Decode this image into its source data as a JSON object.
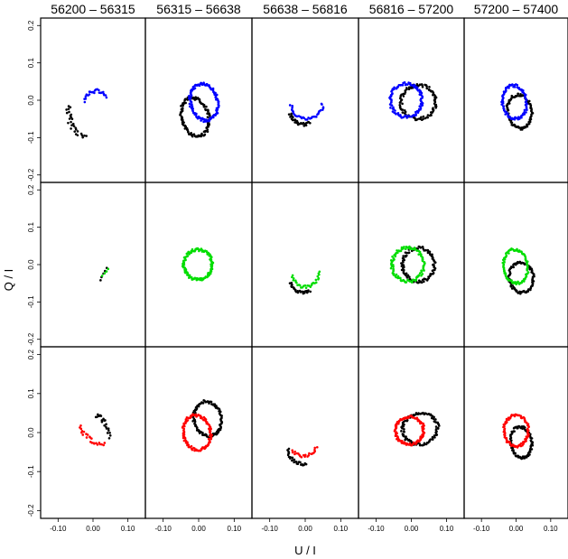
{
  "chart_data": {
    "type": "scatter",
    "layout": "grid 3 rows x 5 columns",
    "column_titles": [
      "56200 – 56315",
      "56315 – 56638",
      "56638 – 56816",
      "56816 – 57200",
      "57200 – 57400"
    ],
    "xlabel": "U / I",
    "ylabel": "Q / I",
    "xlim": [
      -0.15,
      0.15
    ],
    "ylim": [
      -0.22,
      0.22
    ],
    "x_ticks": [
      "-0.10",
      "0.00",
      "0.10"
    ],
    "x_tick_values": [
      -0.1,
      0.0,
      0.1
    ],
    "y_ticks": [
      "-0.2",
      "-0.1",
      "0.0",
      "0.1",
      "0.2"
    ],
    "y_tick_values": [
      -0.2,
      -0.1,
      0.0,
      0.1,
      0.2
    ],
    "grid": false,
    "row_colors": [
      "#0000ff",
      "#00dd00",
      "#ff0000"
    ],
    "reference_color": "#000000",
    "panels": [
      [
        {
          "black": {
            "shape": "arc",
            "cx": 0.02,
            "cy": -0.03,
            "rx": 0.09,
            "ry": 0.08,
            "t0": 170,
            "t1": 245,
            "n": 28
          },
          "colored": {
            "shape": "arc",
            "cx": 0.01,
            "cy": -0.03,
            "rx": 0.04,
            "ry": 0.055,
            "t0": 45,
            "t1": 155,
            "n": 24
          }
        },
        {
          "black": {
            "shape": "ellipse",
            "cx": -0.01,
            "cy": -0.045,
            "rx": 0.038,
            "ry": 0.052,
            "tilt": 0.3,
            "n": 120
          },
          "colored": {
            "shape": "ellipse",
            "cx": 0.015,
            "cy": -0.005,
            "rx": 0.038,
            "ry": 0.05,
            "tilt": 0.3,
            "n": 120
          }
        },
        {
          "black": {
            "shape": "arc",
            "cx": -0.005,
            "cy": -0.02,
            "rx": 0.04,
            "ry": 0.045,
            "t0": 200,
            "t1": 300,
            "n": 30
          },
          "colored": {
            "shape": "arc",
            "cx": 0.005,
            "cy": -0.005,
            "rx": 0.045,
            "ry": 0.045,
            "t0": 190,
            "t1": 360,
            "n": 34
          }
        },
        {
          "black": {
            "shape": "ellipse",
            "cx": 0.02,
            "cy": -0.005,
            "rx": 0.05,
            "ry": 0.045,
            "tilt": 0.1,
            "n": 100
          },
          "colored": {
            "shape": "ellipse",
            "cx": -0.015,
            "cy": 0.0,
            "rx": 0.045,
            "ry": 0.045,
            "tilt": 0.1,
            "n": 100
          }
        },
        {
          "black": {
            "shape": "ellipse",
            "cx": 0.01,
            "cy": -0.03,
            "rx": 0.035,
            "ry": 0.045,
            "tilt": 0.2,
            "n": 90
          },
          "colored": {
            "shape": "ellipse",
            "cx": -0.005,
            "cy": -0.005,
            "rx": 0.035,
            "ry": 0.045,
            "tilt": 0.2,
            "n": 90
          }
        }
      ],
      [
        {
          "black": {
            "shape": "line",
            "x0": 0.02,
            "y0": -0.04,
            "x1": 0.04,
            "y1": -0.01,
            "n": 5
          },
          "colored": {
            "shape": "line",
            "x0": 0.025,
            "y0": -0.03,
            "x1": 0.045,
            "y1": -0.01,
            "n": 4
          }
        },
        {
          "black": {
            "shape": "none"
          },
          "colored": {
            "shape": "ellipse",
            "cx": -0.002,
            "cy": 0.0,
            "rx": 0.04,
            "ry": 0.04,
            "tilt": 0.0,
            "n": 120
          }
        },
        {
          "black": {
            "shape": "arc",
            "cx": -0.005,
            "cy": -0.035,
            "rx": 0.04,
            "ry": 0.04,
            "t0": 200,
            "t1": 300,
            "n": 28
          },
          "colored": {
            "shape": "arc",
            "cx": 0.0,
            "cy": -0.015,
            "rx": 0.04,
            "ry": 0.045,
            "t0": 200,
            "t1": 360,
            "n": 30
          }
        },
        {
          "black": {
            "shape": "ellipse",
            "cx": 0.02,
            "cy": 0.0,
            "rx": 0.045,
            "ry": 0.045,
            "tilt": 0.1,
            "n": 100
          },
          "colored": {
            "shape": "ellipse",
            "cx": -0.01,
            "cy": 0.0,
            "rx": 0.045,
            "ry": 0.045,
            "tilt": 0.1,
            "n": 100
          }
        },
        {
          "black": {
            "shape": "ellipse",
            "cx": 0.015,
            "cy": -0.035,
            "rx": 0.035,
            "ry": 0.04,
            "tilt": 0.2,
            "n": 90
          },
          "colored": {
            "shape": "ellipse",
            "cx": -0.002,
            "cy": -0.005,
            "rx": 0.035,
            "ry": 0.045,
            "tilt": 0.2,
            "n": 90
          }
        }
      ],
      [
        {
          "black": {
            "shape": "arc",
            "cx": 0.01,
            "cy": -0.04,
            "rx": 0.04,
            "ry": 0.08,
            "t0": 20,
            "t1": 95,
            "n": 22
          },
          "colored": {
            "shape": "arc",
            "cx": 0.03,
            "cy": 0.04,
            "rx": 0.07,
            "ry": 0.07,
            "t0": 200,
            "t1": 275,
            "n": 24
          }
        },
        {
          "black": {
            "shape": "ellipse",
            "cx": 0.025,
            "cy": 0.035,
            "rx": 0.038,
            "ry": 0.045,
            "tilt": 0.3,
            "n": 110
          },
          "colored": {
            "shape": "ellipse",
            "cx": -0.005,
            "cy": 0.0,
            "rx": 0.038,
            "ry": 0.045,
            "tilt": 0.3,
            "n": 110
          }
        },
        {
          "black": {
            "shape": "arc",
            "cx": -0.01,
            "cy": -0.035,
            "rx": 0.04,
            "ry": 0.045,
            "t0": 190,
            "t1": 290,
            "n": 26
          },
          "colored": {
            "shape": "arc",
            "cx": -0.005,
            "cy": -0.02,
            "rx": 0.04,
            "ry": 0.04,
            "t0": 220,
            "t1": 340,
            "n": 22
          }
        },
        {
          "black": {
            "shape": "ellipse",
            "cx": 0.025,
            "cy": 0.01,
            "rx": 0.05,
            "ry": 0.04,
            "tilt": 0.1,
            "n": 100
          },
          "colored": {
            "shape": "ellipse",
            "cx": -0.005,
            "cy": 0.005,
            "rx": 0.04,
            "ry": 0.035,
            "tilt": 0.1,
            "n": 100
          }
        },
        {
          "black": {
            "shape": "ellipse",
            "cx": 0.015,
            "cy": -0.025,
            "rx": 0.03,
            "ry": 0.04,
            "tilt": 0.2,
            "n": 90
          },
          "colored": {
            "shape": "ellipse",
            "cx": 0.0,
            "cy": 0.005,
            "rx": 0.035,
            "ry": 0.04,
            "tilt": 0.0,
            "n": 90
          }
        }
      ]
    ]
  }
}
